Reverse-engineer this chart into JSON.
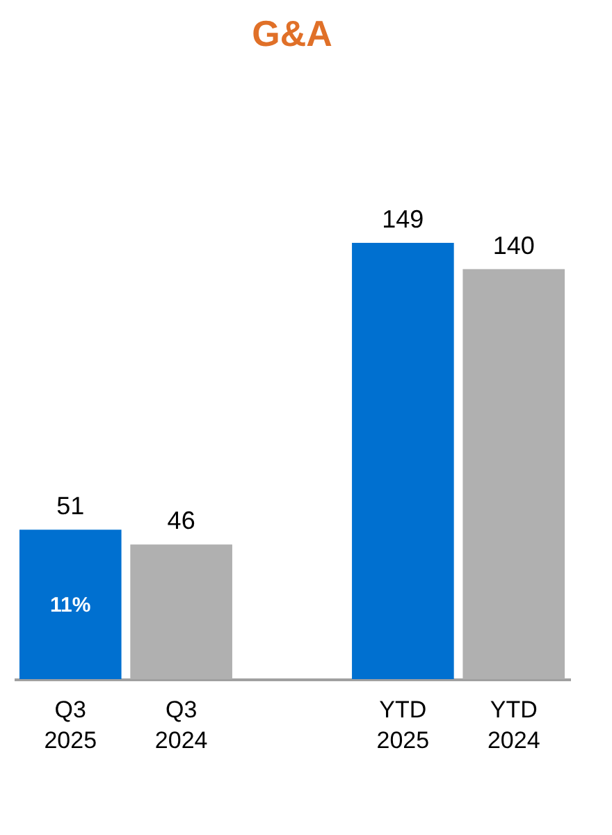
{
  "chart_data": {
    "type": "bar",
    "title": "G&A",
    "categories": [
      "Q3\n2025",
      "Q3\n2024",
      null,
      "YTD\n2025",
      "YTD\n2024"
    ],
    "values": [
      51,
      46,
      null,
      149,
      140
    ],
    "colors": [
      "#0070d0",
      "#b0b0b0",
      "#ffffff",
      "#0070d0",
      "#b0b0b0"
    ],
    "data_labels": true,
    "annotations": [
      "11%"
    ]
  }
}
